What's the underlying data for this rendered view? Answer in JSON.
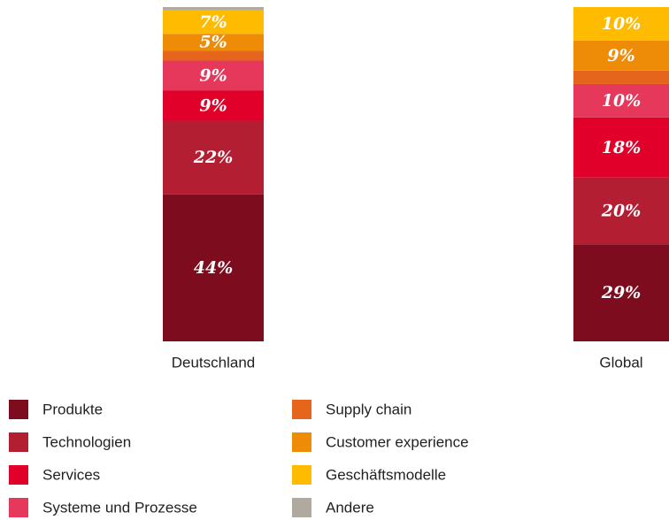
{
  "chart_data": {
    "type": "stacked_bar",
    "categories": [
      "Deutschland",
      "Global"
    ],
    "series": [
      {
        "name": "Produkte",
        "color": "#7d0c1e",
        "values": [
          44,
          29
        ],
        "value_labels": [
          "44%",
          "29%"
        ]
      },
      {
        "name": "Technologien",
        "color": "#b41e32",
        "values": [
          22,
          20
        ],
        "value_labels": [
          "22%",
          "20%"
        ]
      },
      {
        "name": "Services",
        "color": "#e0002a",
        "values": [
          9,
          18
        ],
        "value_labels": [
          "9%",
          "18%"
        ]
      },
      {
        "name": "Systeme und Prozesse",
        "color": "#e6385a",
        "values": [
          9,
          10
        ],
        "value_labels": [
          "9%",
          "10%"
        ]
      },
      {
        "name": "Supply chain",
        "color": "#e5651c",
        "values": [
          3,
          4
        ],
        "value_labels": [
          null,
          null
        ]
      },
      {
        "name": "Customer experience",
        "color": "#ee8c08",
        "values": [
          5,
          9
        ],
        "value_labels": [
          "5%",
          "9%"
        ]
      },
      {
        "name": "Geschäftsmodelle",
        "color": "#ffbb00",
        "values": [
          7,
          10
        ],
        "value_labels": [
          "7%",
          "10%"
        ]
      },
      {
        "name": "Andere",
        "color": "#b0a9a0",
        "values": [
          1,
          0
        ],
        "value_labels": [
          null,
          null
        ]
      }
    ]
  }
}
